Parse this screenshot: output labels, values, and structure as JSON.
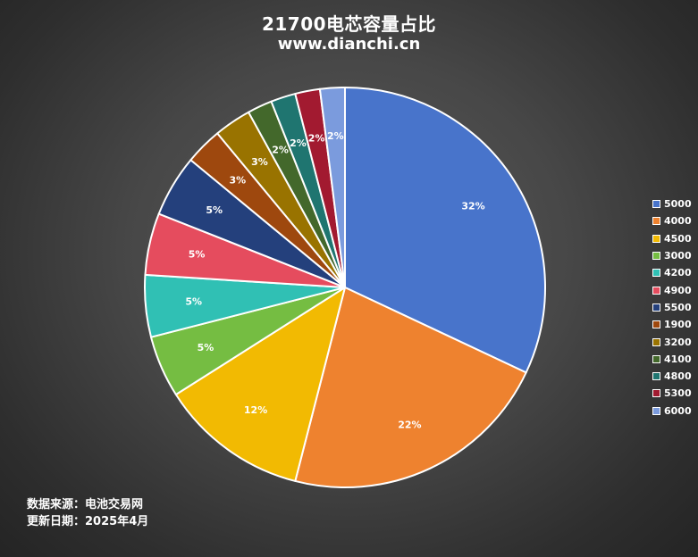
{
  "header": {
    "title": "21700电芯容量占比",
    "subtitle": "www.dianchi.cn"
  },
  "footer": {
    "source_label": "数据来源：",
    "source_value": "电池交易网",
    "date_label": "更新日期：",
    "date_value": "2025年4月"
  },
  "chart_data": {
    "type": "pie",
    "title": "21700电芯容量占比",
    "subtitle": "www.dianchi.cn",
    "legend_position": "right",
    "categories": [
      "5000",
      "4000",
      "4500",
      "3000",
      "4200",
      "4900",
      "5500",
      "1900",
      "3200",
      "4100",
      "4800",
      "5300",
      "6000"
    ],
    "values": [
      32,
      22,
      12,
      5,
      5,
      5,
      5,
      3,
      3,
      2,
      2,
      2,
      2
    ],
    "labels": [
      "32%",
      "22%",
      "12%",
      "5%",
      "5%",
      "5%",
      "5%",
      "3%",
      "3%",
      "2%",
      "2%",
      "2%",
      "2%"
    ],
    "colors": [
      "#4874cb",
      "#ee822f",
      "#f2ba02",
      "#75bd42",
      "#30c0b4",
      "#e54c5e",
      "#24407c",
      "#9e480e",
      "#997300",
      "#43682b",
      "#1f7570",
      "#a21a30",
      "#7b9bdd"
    ]
  }
}
